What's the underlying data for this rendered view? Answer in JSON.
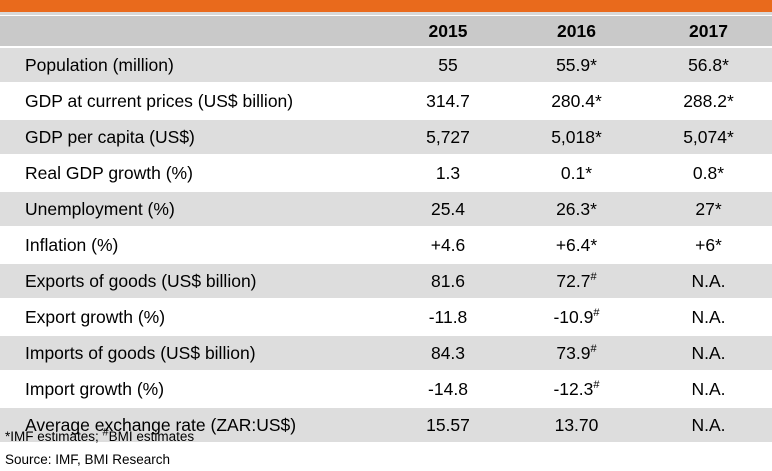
{
  "header": {
    "label": "",
    "years": [
      "2015",
      "2016",
      "2017"
    ]
  },
  "rows": [
    {
      "label": "Population (million)",
      "v1": "55",
      "v2": "55.9*",
      "v3": "56.8*"
    },
    {
      "label": "GDP at current prices (US$ billion)",
      "v1": "314.7",
      "v2": "280.4*",
      "v3": "288.2*"
    },
    {
      "label": "GDP per capita (US$)",
      "v1": "5,727",
      "v2": "5,018*",
      "v3": "5,074*"
    },
    {
      "label": "Real GDP growth (%)",
      "v1": "1.3",
      "v2": "0.1*",
      "v3": "0.8*"
    },
    {
      "label": "Unemployment (%)",
      "v1": "25.4",
      "v2": "26.3*",
      "v3": "27*"
    },
    {
      "label": "Inflation (%)",
      "v1": "+4.6",
      "v2": "+6.4*",
      "v3": "+6*"
    },
    {
      "label": "Exports of goods (US$ billion)",
      "v1": "81.6",
      "v2": "72.7",
      "v2_mark": "#",
      "v3": "N.A."
    },
    {
      "label": "Export growth (%)",
      "v1": "-11.8",
      "v2": "-10.9",
      "v2_mark": "#",
      "v3": "N.A."
    },
    {
      "label": "Imports of goods (US$ billion)",
      "v1": "84.3",
      "v2": "73.9",
      "v2_mark": "#",
      "v3": "N.A."
    },
    {
      "label": "Import growth (%)",
      "v1": "-14.8",
      "v2": "-12.3",
      "v2_mark": "#",
      "v3": "N.A."
    },
    {
      "label": "Average exchange rate (ZAR:US$)",
      "v1": "15.57",
      "v2": "13.70",
      "v3": "N.A."
    }
  ],
  "footnotes": {
    "estimates_imf": "*IMF estimates; ",
    "estimates_bmi_mark": "#",
    "estimates_bmi": "BMI estimates",
    "source": "Source: IMF, BMI Research"
  },
  "colors": {
    "accent": "#e96a1c",
    "header_bg": "#c9c9c9",
    "row_shade": "#dddddd"
  }
}
